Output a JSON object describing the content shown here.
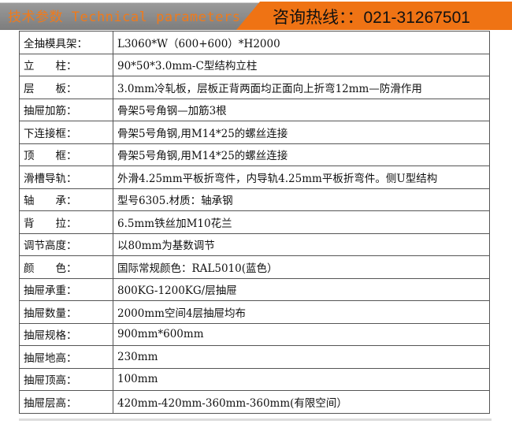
{
  "header": {
    "title": "技术参数 Technical parameters",
    "hotline": "咨询热线：：021-31267501",
    "accent": "#ef7314"
  },
  "rows": [
    {
      "label": "全抽模具架：",
      "value": "L3060*W（600+600）*H2000"
    },
    {
      "label": "立　　柱：",
      "value": "90*50*3.0mm-C型结构立柱"
    },
    {
      "label": "层　　板：",
      "value": "3.0mm冷轧板，层板正背两面均正面向上折弯12mm—防滑作用"
    },
    {
      "label": "抽屉加筋：",
      "value": "骨架5号角钢—加筋3根"
    },
    {
      "label": "下连接框：",
      "value": "骨架5号角钢,用M14*25的螺丝连接"
    },
    {
      "label": "顶　　框：",
      "value": "骨架5号角钢,用M14*25的螺丝连接"
    },
    {
      "label": "滑槽导轨：",
      "value": "外滑4.25mm平板折弯件，内导轨4.25mm平板折弯件。侧U型结构"
    },
    {
      "label": "轴　　承：",
      "value": "型号6305.材质：轴承钢"
    },
    {
      "label": "背　　拉：",
      "value": "6.5mm铁丝加M10花兰"
    },
    {
      "label": "调节高度：",
      "value": "以80mm为基数调节"
    },
    {
      "label": "颜　　色：",
      "value": "国际常规颜色：RAL5010(蓝色）"
    },
    {
      "label": "抽屉承重：",
      "value": "800KG-1200KG/层抽屉"
    },
    {
      "label": "抽屉数量：",
      "value": "2000mm空间4层抽屉均布"
    },
    {
      "label": "抽屉规格：",
      "value": "900mm*600mm"
    },
    {
      "label": "抽屉地高：",
      "value": "230mm"
    },
    {
      "label": "抽屉顶高：",
      "value": "100mm"
    },
    {
      "label": "抽屉层高：",
      "value": "420mm-420mm-360mm-360mm(有限空间）"
    }
  ]
}
